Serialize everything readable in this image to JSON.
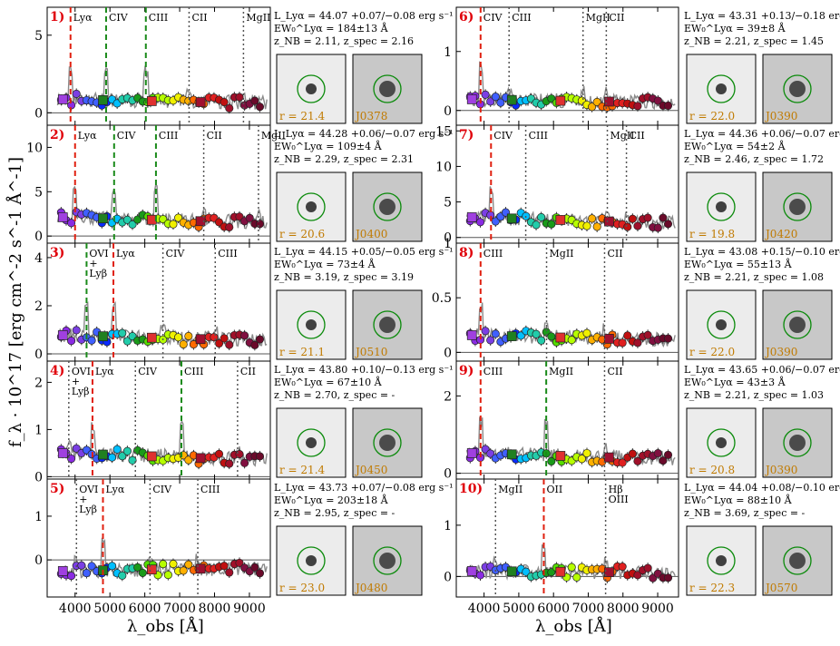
{
  "figure": {
    "ylabel": "f_λ · 10^17 [erg cm^-2 s^-1 Å^-1]",
    "xlabel": "λ_obs [Å]",
    "x_ticks": [
      "4000",
      "5000",
      "6000",
      "7000",
      "8000",
      "9000"
    ],
    "colors": {
      "panel_number": "#e0000a",
      "lya_line": "#e02010",
      "other_line": "#1a8a1a",
      "info_line": "#555555",
      "spectrum": "#8a8a8a",
      "circle": "#0a8a0a",
      "stamp_text": "#c07a00"
    }
  },
  "chart_data": [
    {
      "type": "line",
      "panel": "1)",
      "col": 0,
      "row": 0,
      "ylim": [
        -0.8,
        6.8
      ],
      "yticks": [
        0,
        5
      ],
      "lines": [
        {
          "label": "Lyα",
          "x": 3870,
          "style": "red"
        },
        {
          "label": "CIV",
          "x": 4890,
          "style": "green"
        },
        {
          "label": "CIII",
          "x": 6030,
          "style": "green"
        },
        {
          "label": "CII",
          "x": 7270,
          "style": "dot"
        },
        {
          "label": "MgII",
          "x": 8830,
          "style": "dot"
        }
      ],
      "info": {
        "lum": "L_Lyα = 44.07 +0.07/−0.08 erg s⁻¹",
        "ew": "EW₀^Lyα = 184±13 Å",
        "z": "z_NB = 2.11, z_spec = 2.16"
      },
      "stamp_r": "r = 21.4",
      "stamp_nb": "J0378"
    },
    {
      "type": "line",
      "panel": "2)",
      "col": 0,
      "row": 1,
      "ylim": [
        -0.8,
        12.5
      ],
      "yticks": [
        0,
        5,
        10
      ],
      "lines": [
        {
          "label": "Lyα",
          "x": 4000,
          "style": "red"
        },
        {
          "label": "CIV",
          "x": 5120,
          "style": "green"
        },
        {
          "label": "CIII",
          "x": 6320,
          "style": "green"
        },
        {
          "label": "CII",
          "x": 7690,
          "style": "dot"
        },
        {
          "label": "MgII",
          "x": 9260,
          "style": "dot"
        }
      ],
      "info": {
        "lum": "L_Lyα = 44.28 +0.06/−0.07 erg s⁻¹",
        "ew": "EW₀^Lyα = 109±4 Å",
        "z": "z_NB = 2.29, z_spec = 2.31"
      },
      "stamp_r": "r = 20.6",
      "stamp_nb": "J0400"
    },
    {
      "type": "line",
      "panel": "3)",
      "col": 0,
      "row": 2,
      "ylim": [
        -0.3,
        4.6
      ],
      "yticks": [
        0,
        2,
        4
      ],
      "lines": [
        {
          "label": "OVI\n+\nLyβ",
          "x": 4330,
          "style": "green"
        },
        {
          "label": "Lyα",
          "x": 5100,
          "style": "red"
        },
        {
          "label": "CIV",
          "x": 6520,
          "style": "dot"
        },
        {
          "label": "CIII",
          "x": 8020,
          "style": "dot"
        }
      ],
      "info": {
        "lum": "L_Lyα = 44.15 +0.05/−0.05 erg s⁻¹",
        "ew": "EW₀^Lyα = 73±4 Å",
        "z": "z_NB = 3.19, z_spec = 3.19"
      },
      "stamp_r": "r = 21.1",
      "stamp_nb": "J0510"
    },
    {
      "type": "line",
      "panel": "4)",
      "col": 0,
      "row": 3,
      "ylim": [
        -0.05,
        2.45
      ],
      "yticks": [
        0,
        1,
        2
      ],
      "lines": [
        {
          "label": "OVI\n+\nLyβ",
          "x": 3820,
          "style": "dot"
        },
        {
          "label": "Lyα",
          "x": 4500,
          "style": "red"
        },
        {
          "label": "CIV",
          "x": 5730,
          "style": "dot"
        },
        {
          "label": "CIII",
          "x": 7050,
          "style": "green"
        },
        {
          "label": "CII",
          "x": 8660,
          "style": "dot"
        }
      ],
      "info": {
        "lum": "L_Lyα = 43.80 +0.10/−0.13 erg s⁻¹",
        "ew": "EW₀^Lyα = 67±10 Å",
        "z": "z_NB = 2.70, z_spec = -"
      },
      "stamp_r": "r = 21.4",
      "stamp_nb": "J0450"
    },
    {
      "type": "line",
      "panel": "5)",
      "col": 0,
      "row": 4,
      "ylim": [
        -0.85,
        1.85
      ],
      "yticks": [
        0,
        1
      ],
      "lines": [
        {
          "label": "OVI\n+\nLyβ",
          "x": 4040,
          "style": "dot"
        },
        {
          "label": "Lyα",
          "x": 4800,
          "style": "red"
        },
        {
          "label": "CIV",
          "x": 6150,
          "style": "dot"
        },
        {
          "label": "CIII",
          "x": 7520,
          "style": "dot"
        }
      ],
      "info": {
        "lum": "L_Lyα = 43.73 +0.07/−0.08 erg s⁻¹",
        "ew": "EW₀^Lyα = 203±18 Å",
        "z": "z_NB = 2.95, z_spec = -"
      },
      "stamp_r": "r = 23.0",
      "stamp_nb": "J0480"
    },
    {
      "type": "line",
      "panel": "6)",
      "col": 1,
      "row": 0,
      "ylim": [
        -0.25,
        1.75
      ],
      "yticks": [
        0,
        1
      ],
      "lines": [
        {
          "label": "CIV",
          "x": 3900,
          "style": "red"
        },
        {
          "label": "CIII",
          "x": 4720,
          "style": "dot"
        },
        {
          "label": "MgII",
          "x": 6850,
          "style": "dot"
        },
        {
          "label": "CII",
          "x": 7520,
          "style": "dot"
        }
      ],
      "info": {
        "lum": "L_Lyα = 43.31 +0.13/−0.18 erg s⁻¹",
        "ew": "EW₀^Lyα = 39±8 Å",
        "z": "z_NB = 2.21, z_spec = 1.45"
      },
      "stamp_r": "r = 22.0",
      "stamp_nb": "J0390"
    },
    {
      "type": "line",
      "panel": "7)",
      "col": 1,
      "row": 1,
      "ylim": [
        -0.8,
        15.8
      ],
      "yticks": [
        0,
        5,
        10,
        15
      ],
      "lines": [
        {
          "label": "CIV",
          "x": 4200,
          "style": "red"
        },
        {
          "label": "CIII",
          "x": 5200,
          "style": "dot"
        },
        {
          "label": "MgII",
          "x": 7550,
          "style": "dot"
        },
        {
          "label": "CII",
          "x": 8100,
          "style": "dot"
        }
      ],
      "info": {
        "lum": "L_Lyα = 44.36 +0.06/−0.07 erg s⁻¹",
        "ew": "EW₀^Lyα = 54±2 Å",
        "z": "z_NB = 2.46, z_spec = 1.72"
      },
      "stamp_r": "r = 19.8",
      "stamp_nb": "J0420"
    },
    {
      "type": "line",
      "panel": "8)",
      "col": 1,
      "row": 2,
      "ylim": [
        -0.08,
        1.0
      ],
      "yticks": [
        0.0,
        0.5,
        1.0
      ],
      "lines": [
        {
          "label": "CIII",
          "x": 3900,
          "style": "red"
        },
        {
          "label": "MgII",
          "x": 5800,
          "style": "dot"
        },
        {
          "label": "CII",
          "x": 7470,
          "style": "dot"
        }
      ],
      "info": {
        "lum": "L_Lyα = 43.08 +0.15/−0.10 erg s⁻¹",
        "ew": "EW₀^Lyα = 55±13 Å",
        "z": "z_NB = 2.21, z_spec = 1.08"
      },
      "stamp_r": "r = 22.0",
      "stamp_nb": "J0390"
    },
    {
      "type": "line",
      "panel": "9)",
      "col": 1,
      "row": 3,
      "ylim": [
        -0.15,
        2.9
      ],
      "yticks": [
        0,
        2
      ],
      "lines": [
        {
          "label": "CIII",
          "x": 3900,
          "style": "red"
        },
        {
          "label": "MgII",
          "x": 5790,
          "style": "green"
        },
        {
          "label": "CII",
          "x": 7470,
          "style": "dot"
        }
      ],
      "info": {
        "lum": "L_Lyα = 43.65 +0.06/−0.07 erg s⁻¹",
        "ew": "EW₀^Lyα = 43±3 Å",
        "z": "z_NB = 2.21, z_spec = 1.03"
      },
      "stamp_r": "r = 20.8",
      "stamp_nb": "J0390"
    },
    {
      "type": "line",
      "panel": "10)",
      "col": 1,
      "row": 4,
      "ylim": [
        -0.4,
        1.9
      ],
      "yticks": [
        0,
        1
      ],
      "lines": [
        {
          "label": "MgII",
          "x": 4330,
          "style": "dot"
        },
        {
          "label": "OII",
          "x": 5720,
          "style": "red"
        },
        {
          "label": "Hβ\nOIII",
          "x": 7500,
          "style": "dot"
        }
      ],
      "info": {
        "lum": "L_Lyα = 44.04 +0.08/−0.10 erg s⁻¹",
        "ew": "EW₀^Lyα = 88±10 Å",
        "z": "z_NB = 3.69, z_spec = -"
      },
      "stamp_r": "r = 22.3",
      "stamp_nb": "J0570"
    }
  ]
}
